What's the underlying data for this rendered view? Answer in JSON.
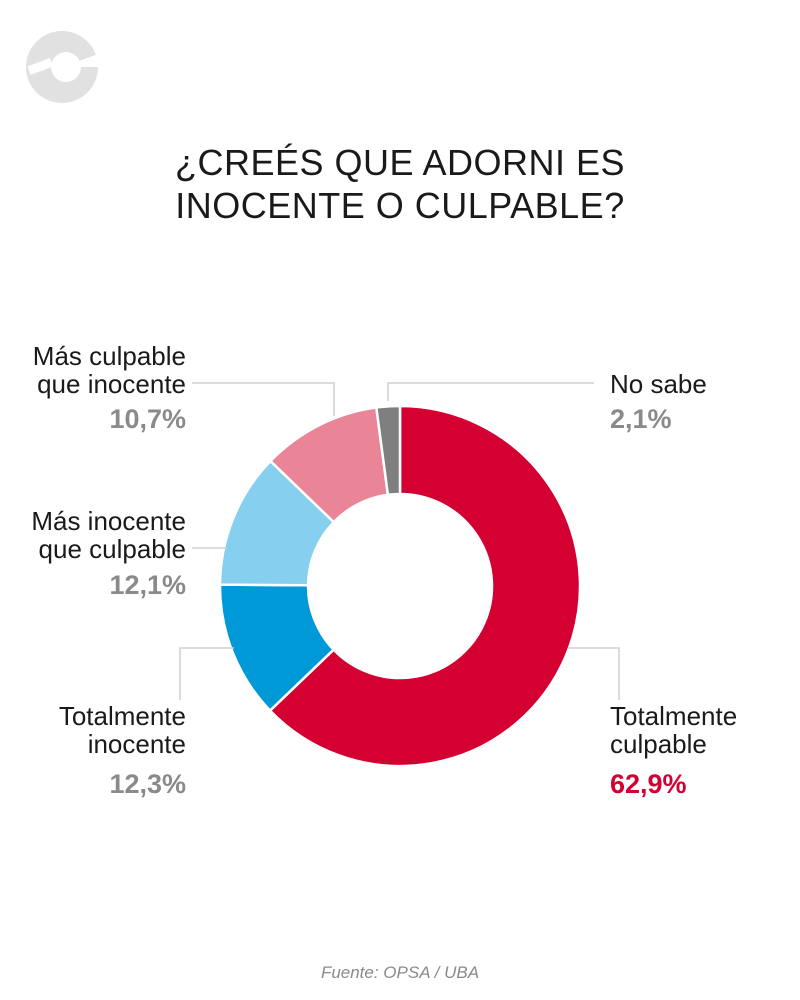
{
  "logo": {
    "icon": "brand-logo-icon",
    "color": "#e1e1e1"
  },
  "title_lines": [
    "¿CREÉS QUE ADORNI ES",
    "INOCENTE O CULPABLE?"
  ],
  "source": "Fuente: OPSA / UBA",
  "chart_data": {
    "type": "pie",
    "style": "donut",
    "title": "¿CREÉS QUE ADORNI ES INOCENTE O CULPABLE?",
    "unit": "%",
    "series": [
      {
        "slices": [
          {
            "label_lines": [
              "Totalmente",
              "culpable"
            ],
            "value": 62.9,
            "value_label": "62,9%",
            "color": "#d50032",
            "highlight": true
          },
          {
            "label_lines": [
              "Totalmente",
              "inocente"
            ],
            "value": 12.3,
            "value_label": "12,3%",
            "color": "#0099d8",
            "highlight": false
          },
          {
            "label_lines": [
              "Más inocente",
              "que culpable"
            ],
            "value": 12.1,
            "value_label": "12,1%",
            "color": "#86cfee",
            "highlight": false
          },
          {
            "label_lines": [
              "Más culpable",
              "que inocente"
            ],
            "value": 10.7,
            "value_label": "10,7%",
            "color": "#ea8497",
            "highlight": false
          },
          {
            "label_lines": [
              "No sabe"
            ],
            "value": 2.1,
            "value_label": "2,1%",
            "color": "#7f7f7f",
            "highlight": false
          }
        ]
      }
    ],
    "source": "Fuente: OPSA / UBA"
  }
}
